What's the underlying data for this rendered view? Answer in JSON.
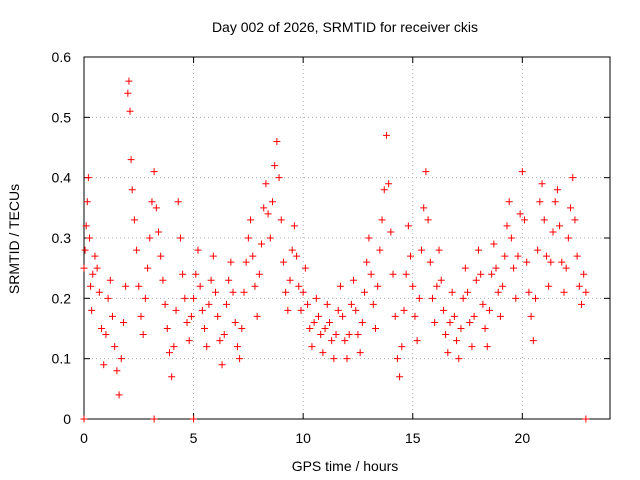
{
  "colors": {
    "series": "#ff0000",
    "grid": "#a0a0a0",
    "axis": "#000000"
  },
  "chart_data": {
    "type": "scatter",
    "title": "Day 002 of 2026, SRMTID for receiver ckis",
    "xlabel": "GPS time / hours",
    "ylabel": "SRMTID / TECUs",
    "xlim": [
      0,
      24
    ],
    "ylim": [
      0,
      0.6
    ],
    "xticks": [
      0,
      5,
      10,
      15,
      20
    ],
    "xtick_labels": [
      "0",
      "5",
      "10",
      "15",
      "20"
    ],
    "yticks": [
      0,
      0.1,
      0.2,
      0.3,
      0.4,
      0.5,
      0.6
    ],
    "ytick_labels": [
      "0",
      "0.1",
      "0.2",
      "0.3",
      "0.4",
      "0.5",
      "0.6"
    ],
    "grid": true,
    "marker": "+",
    "series": [
      {
        "name": "SRMTID",
        "points": [
          [
            0.0,
            0.25
          ],
          [
            0.05,
            0.28
          ],
          [
            0.1,
            0.32
          ],
          [
            0.15,
            0.36
          ],
          [
            0.2,
            0.4
          ],
          [
            0.25,
            0.3
          ],
          [
            0.3,
            0.22
          ],
          [
            0.35,
            0.18
          ],
          [
            0.4,
            0.24
          ],
          [
            0.5,
            0.27
          ],
          [
            0.6,
            0.25
          ],
          [
            0.7,
            0.21
          ],
          [
            0.8,
            0.15
          ],
          [
            0.9,
            0.09
          ],
          [
            1.0,
            0.14
          ],
          [
            1.1,
            0.2
          ],
          [
            1.2,
            0.23
          ],
          [
            1.3,
            0.17
          ],
          [
            1.4,
            0.12
          ],
          [
            1.5,
            0.08
          ],
          [
            1.6,
            0.04
          ],
          [
            1.7,
            0.1
          ],
          [
            1.8,
            0.16
          ],
          [
            1.9,
            0.22
          ],
          [
            2.0,
            0.54
          ],
          [
            2.05,
            0.56
          ],
          [
            2.1,
            0.51
          ],
          [
            2.15,
            0.43
          ],
          [
            2.2,
            0.38
          ],
          [
            2.3,
            0.33
          ],
          [
            2.4,
            0.28
          ],
          [
            2.5,
            0.22
          ],
          [
            2.6,
            0.17
          ],
          [
            2.7,
            0.14
          ],
          [
            2.8,
            0.2
          ],
          [
            2.9,
            0.25
          ],
          [
            3.0,
            0.3
          ],
          [
            3.1,
            0.36
          ],
          [
            3.2,
            0.41
          ],
          [
            3.3,
            0.35
          ],
          [
            3.4,
            0.31
          ],
          [
            3.5,
            0.27
          ],
          [
            3.6,
            0.23
          ],
          [
            3.7,
            0.19
          ],
          [
            3.8,
            0.15
          ],
          [
            3.9,
            0.11
          ],
          [
            4.0,
            0.07
          ],
          [
            4.1,
            0.12
          ],
          [
            4.2,
            0.18
          ],
          [
            4.3,
            0.36
          ],
          [
            4.4,
            0.3
          ],
          [
            4.5,
            0.24
          ],
          [
            4.6,
            0.2
          ],
          [
            4.7,
            0.16
          ],
          [
            4.8,
            0.13
          ],
          [
            4.9,
            0.17
          ],
          [
            5.0,
            0.2
          ],
          [
            5.1,
            0.24
          ],
          [
            5.2,
            0.28
          ],
          [
            5.3,
            0.22
          ],
          [
            5.4,
            0.18
          ],
          [
            5.5,
            0.15
          ],
          [
            5.6,
            0.12
          ],
          [
            5.7,
            0.19
          ],
          [
            5.8,
            0.23
          ],
          [
            5.9,
            0.27
          ],
          [
            6.0,
            0.21
          ],
          [
            6.1,
            0.17
          ],
          [
            6.2,
            0.13
          ],
          [
            6.3,
            0.09
          ],
          [
            6.4,
            0.14
          ],
          [
            6.5,
            0.19
          ],
          [
            6.6,
            0.23
          ],
          [
            6.7,
            0.26
          ],
          [
            6.8,
            0.21
          ],
          [
            6.9,
            0.16
          ],
          [
            7.0,
            0.12
          ],
          [
            7.1,
            0.1
          ],
          [
            7.2,
            0.15
          ],
          [
            7.3,
            0.21
          ],
          [
            7.4,
            0.26
          ],
          [
            7.5,
            0.3
          ],
          [
            7.6,
            0.33
          ],
          [
            7.7,
            0.27
          ],
          [
            7.8,
            0.22
          ],
          [
            7.9,
            0.17
          ],
          [
            8.0,
            0.24
          ],
          [
            8.1,
            0.29
          ],
          [
            8.2,
            0.35
          ],
          [
            8.3,
            0.39
          ],
          [
            8.4,
            0.34
          ],
          [
            8.5,
            0.3
          ],
          [
            8.6,
            0.36
          ],
          [
            8.7,
            0.42
          ],
          [
            8.8,
            0.46
          ],
          [
            8.9,
            0.4
          ],
          [
            9.0,
            0.33
          ],
          [
            9.1,
            0.26
          ],
          [
            9.2,
            0.21
          ],
          [
            9.3,
            0.18
          ],
          [
            9.4,
            0.23
          ],
          [
            9.5,
            0.28
          ],
          [
            9.6,
            0.32
          ],
          [
            9.7,
            0.27
          ],
          [
            9.8,
            0.22
          ],
          [
            9.9,
            0.18
          ],
          [
            10.0,
            0.21
          ],
          [
            10.1,
            0.25
          ],
          [
            10.2,
            0.19
          ],
          [
            10.3,
            0.15
          ],
          [
            10.4,
            0.12
          ],
          [
            10.5,
            0.16
          ],
          [
            10.6,
            0.2
          ],
          [
            10.7,
            0.17
          ],
          [
            10.8,
            0.14
          ],
          [
            10.9,
            0.11
          ],
          [
            11.0,
            0.15
          ],
          [
            11.1,
            0.19
          ],
          [
            11.2,
            0.16
          ],
          [
            11.3,
            0.13
          ],
          [
            11.4,
            0.1
          ],
          [
            11.5,
            0.14
          ],
          [
            11.6,
            0.18
          ],
          [
            11.7,
            0.22
          ],
          [
            11.8,
            0.17
          ],
          [
            11.9,
            0.13
          ],
          [
            12.0,
            0.1
          ],
          [
            12.1,
            0.14
          ],
          [
            12.2,
            0.19
          ],
          [
            12.3,
            0.23
          ],
          [
            12.4,
            0.18
          ],
          [
            12.5,
            0.14
          ],
          [
            12.6,
            0.11
          ],
          [
            12.7,
            0.16
          ],
          [
            12.8,
            0.21
          ],
          [
            12.9,
            0.26
          ],
          [
            13.0,
            0.3
          ],
          [
            13.1,
            0.24
          ],
          [
            13.2,
            0.19
          ],
          [
            13.3,
            0.15
          ],
          [
            13.4,
            0.22
          ],
          [
            13.5,
            0.28
          ],
          [
            13.6,
            0.33
          ],
          [
            13.7,
            0.38
          ],
          [
            13.8,
            0.47
          ],
          [
            13.9,
            0.39
          ],
          [
            14.0,
            0.31
          ],
          [
            14.1,
            0.24
          ],
          [
            14.2,
            0.17
          ],
          [
            14.3,
            0.1
          ],
          [
            14.4,
            0.07
          ],
          [
            14.5,
            0.12
          ],
          [
            14.6,
            0.18
          ],
          [
            14.7,
            0.24
          ],
          [
            14.8,
            0.32
          ],
          [
            14.9,
            0.27
          ],
          [
            15.0,
            0.22
          ],
          [
            15.1,
            0.17
          ],
          [
            15.2,
            0.13
          ],
          [
            15.3,
            0.2
          ],
          [
            15.4,
            0.28
          ],
          [
            15.5,
            0.35
          ],
          [
            15.6,
            0.41
          ],
          [
            15.7,
            0.33
          ],
          [
            15.8,
            0.26
          ],
          [
            15.9,
            0.2
          ],
          [
            16.0,
            0.16
          ],
          [
            16.1,
            0.22
          ],
          [
            16.2,
            0.28
          ],
          [
            16.3,
            0.23
          ],
          [
            16.4,
            0.18
          ],
          [
            16.5,
            0.14
          ],
          [
            16.6,
            0.11
          ],
          [
            16.7,
            0.16
          ],
          [
            16.8,
            0.21
          ],
          [
            16.9,
            0.17
          ],
          [
            17.0,
            0.13
          ],
          [
            17.1,
            0.1
          ],
          [
            17.2,
            0.15
          ],
          [
            17.3,
            0.2
          ],
          [
            17.4,
            0.25
          ],
          [
            17.5,
            0.21
          ],
          [
            17.6,
            0.16
          ],
          [
            17.7,
            0.12
          ],
          [
            17.8,
            0.17
          ],
          [
            17.9,
            0.23
          ],
          [
            18.0,
            0.28
          ],
          [
            18.1,
            0.24
          ],
          [
            18.2,
            0.19
          ],
          [
            18.3,
            0.15
          ],
          [
            18.4,
            0.12
          ],
          [
            18.5,
            0.18
          ],
          [
            18.6,
            0.24
          ],
          [
            18.7,
            0.29
          ],
          [
            18.8,
            0.25
          ],
          [
            18.9,
            0.21
          ],
          [
            19.0,
            0.17
          ],
          [
            19.1,
            0.22
          ],
          [
            19.2,
            0.27
          ],
          [
            19.3,
            0.32
          ],
          [
            19.4,
            0.36
          ],
          [
            19.5,
            0.3
          ],
          [
            19.6,
            0.25
          ],
          [
            19.7,
            0.2
          ],
          [
            19.8,
            0.27
          ],
          [
            19.9,
            0.34
          ],
          [
            20.0,
            0.41
          ],
          [
            20.1,
            0.33
          ],
          [
            20.2,
            0.26
          ],
          [
            20.3,
            0.21
          ],
          [
            20.4,
            0.17
          ],
          [
            20.5,
            0.13
          ],
          [
            20.6,
            0.2
          ],
          [
            20.7,
            0.28
          ],
          [
            20.8,
            0.36
          ],
          [
            20.9,
            0.39
          ],
          [
            21.0,
            0.33
          ],
          [
            21.1,
            0.27
          ],
          [
            21.2,
            0.22
          ],
          [
            21.3,
            0.26
          ],
          [
            21.4,
            0.31
          ],
          [
            21.5,
            0.36
          ],
          [
            21.6,
            0.38
          ],
          [
            21.7,
            0.32
          ],
          [
            21.8,
            0.26
          ],
          [
            21.9,
            0.21
          ],
          [
            22.0,
            0.25
          ],
          [
            22.1,
            0.3
          ],
          [
            22.2,
            0.35
          ],
          [
            22.3,
            0.4
          ],
          [
            22.4,
            0.33
          ],
          [
            22.5,
            0.27
          ],
          [
            22.6,
            0.22
          ],
          [
            22.7,
            0.19
          ],
          [
            22.8,
            0.24
          ],
          [
            22.9,
            0.21
          ],
          [
            0.0,
            0.0
          ],
          [
            3.2,
            0.0
          ],
          [
            5.0,
            0.0
          ],
          [
            22.9,
            0.0
          ]
        ]
      }
    ]
  }
}
